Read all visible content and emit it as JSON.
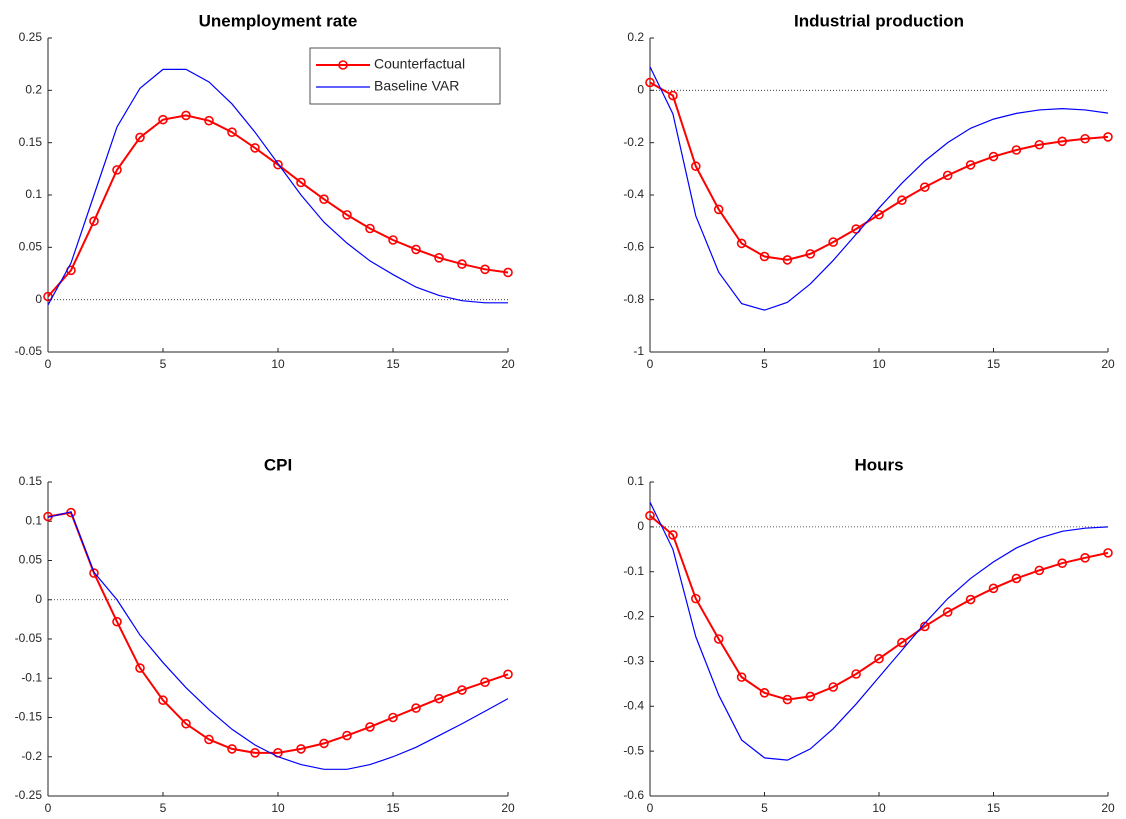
{
  "chart_data": [
    {
      "type": "line",
      "title": "Unemployment rate",
      "x": [
        0,
        1,
        2,
        3,
        4,
        5,
        6,
        7,
        8,
        9,
        10,
        11,
        12,
        13,
        14,
        15,
        16,
        17,
        18,
        19,
        20
      ],
      "xlim": [
        0,
        20
      ],
      "xticks": [
        0,
        5,
        10,
        15,
        20
      ],
      "ylim": [
        -0.05,
        0.25
      ],
      "yticks": [
        -0.05,
        0,
        0.05,
        0.1,
        0.15,
        0.2,
        0.25
      ],
      "zeroline": true,
      "legend": "upper right",
      "series": [
        {
          "name": "Counterfactual",
          "color": "#ff0000",
          "marker": "o",
          "values": [
            0.003,
            0.028,
            0.075,
            0.124,
            0.155,
            0.172,
            0.176,
            0.171,
            0.16,
            0.145,
            0.129,
            0.112,
            0.096,
            0.081,
            0.068,
            0.057,
            0.048,
            0.04,
            0.034,
            0.029,
            0.026
          ]
        },
        {
          "name": "Baseline VAR",
          "color": "#0000ff",
          "values": [
            -0.005,
            0.035,
            0.1,
            0.165,
            0.202,
            0.22,
            0.22,
            0.208,
            0.187,
            0.16,
            0.13,
            0.1,
            0.074,
            0.054,
            0.037,
            0.024,
            0.012,
            0.004,
            -0.001,
            -0.003,
            -0.003
          ]
        }
      ]
    },
    {
      "type": "line",
      "title": "Industrial production",
      "x": [
        0,
        1,
        2,
        3,
        4,
        5,
        6,
        7,
        8,
        9,
        10,
        11,
        12,
        13,
        14,
        15,
        16,
        17,
        18,
        19,
        20
      ],
      "xlim": [
        0,
        20
      ],
      "xticks": [
        0,
        5,
        10,
        15,
        20
      ],
      "ylim": [
        -1,
        0.2
      ],
      "yticks": [
        -1,
        -0.8,
        -0.6,
        -0.4,
        -0.2,
        0,
        0.2
      ],
      "zeroline": true,
      "series": [
        {
          "color": "#ff0000",
          "marker": "o",
          "values": [
            0.03,
            -0.02,
            -0.29,
            -0.455,
            -0.585,
            -0.635,
            -0.648,
            -0.625,
            -0.58,
            -0.53,
            -0.475,
            -0.42,
            -0.37,
            -0.325,
            -0.285,
            -0.253,
            -0.228,
            -0.208,
            -0.195,
            -0.185,
            -0.178
          ]
        },
        {
          "color": "#0000ff",
          "values": [
            0.09,
            -0.09,
            -0.48,
            -0.695,
            -0.815,
            -0.84,
            -0.81,
            -0.74,
            -0.65,
            -0.55,
            -0.45,
            -0.355,
            -0.27,
            -0.2,
            -0.145,
            -0.11,
            -0.088,
            -0.075,
            -0.07,
            -0.075,
            -0.087
          ]
        }
      ]
    },
    {
      "type": "line",
      "title": "CPI",
      "x": [
        0,
        1,
        2,
        3,
        4,
        5,
        6,
        7,
        8,
        9,
        10,
        11,
        12,
        13,
        14,
        15,
        16,
        17,
        18,
        19,
        20
      ],
      "xlim": [
        0,
        20
      ],
      "xticks": [
        0,
        5,
        10,
        15,
        20
      ],
      "ylim": [
        -0.25,
        0.15
      ],
      "yticks": [
        -0.25,
        -0.2,
        -0.15,
        -0.1,
        -0.05,
        0,
        0.05,
        0.1,
        0.15
      ],
      "zeroline": true,
      "series": [
        {
          "color": "#ff0000",
          "marker": "o",
          "values": [
            0.106,
            0.111,
            0.034,
            -0.028,
            -0.087,
            -0.128,
            -0.158,
            -0.178,
            -0.19,
            -0.195,
            -0.195,
            -0.19,
            -0.183,
            -0.173,
            -0.162,
            -0.15,
            -0.138,
            -0.126,
            -0.115,
            -0.105,
            -0.095
          ]
        },
        {
          "color": "#0000ff",
          "values": [
            0.105,
            0.112,
            0.035,
            0.0,
            -0.045,
            -0.08,
            -0.112,
            -0.14,
            -0.165,
            -0.185,
            -0.2,
            -0.21,
            -0.216,
            -0.216,
            -0.21,
            -0.2,
            -0.188,
            -0.173,
            -0.158,
            -0.142,
            -0.126
          ]
        }
      ]
    },
    {
      "type": "line",
      "title": "Hours",
      "x": [
        0,
        1,
        2,
        3,
        4,
        5,
        6,
        7,
        8,
        9,
        10,
        11,
        12,
        13,
        14,
        15,
        16,
        17,
        18,
        19,
        20
      ],
      "xlim": [
        0,
        20
      ],
      "xticks": [
        0,
        5,
        10,
        15,
        20
      ],
      "ylim": [
        -0.6,
        0.1
      ],
      "yticks": [
        -0.6,
        -0.5,
        -0.4,
        -0.3,
        -0.2,
        -0.1,
        0,
        0.1
      ],
      "zeroline": true,
      "series": [
        {
          "color": "#ff0000",
          "marker": "o",
          "values": [
            0.025,
            -0.018,
            -0.16,
            -0.25,
            -0.335,
            -0.37,
            -0.385,
            -0.378,
            -0.357,
            -0.328,
            -0.294,
            -0.258,
            -0.222,
            -0.19,
            -0.162,
            -0.137,
            -0.115,
            -0.097,
            -0.081,
            -0.069,
            -0.058
          ]
        },
        {
          "color": "#0000ff",
          "values": [
            0.055,
            -0.05,
            -0.245,
            -0.375,
            -0.475,
            -0.515,
            -0.52,
            -0.495,
            -0.45,
            -0.395,
            -0.335,
            -0.275,
            -0.215,
            -0.16,
            -0.115,
            -0.078,
            -0.047,
            -0.025,
            -0.01,
            -0.003,
            0
          ]
        }
      ]
    }
  ]
}
